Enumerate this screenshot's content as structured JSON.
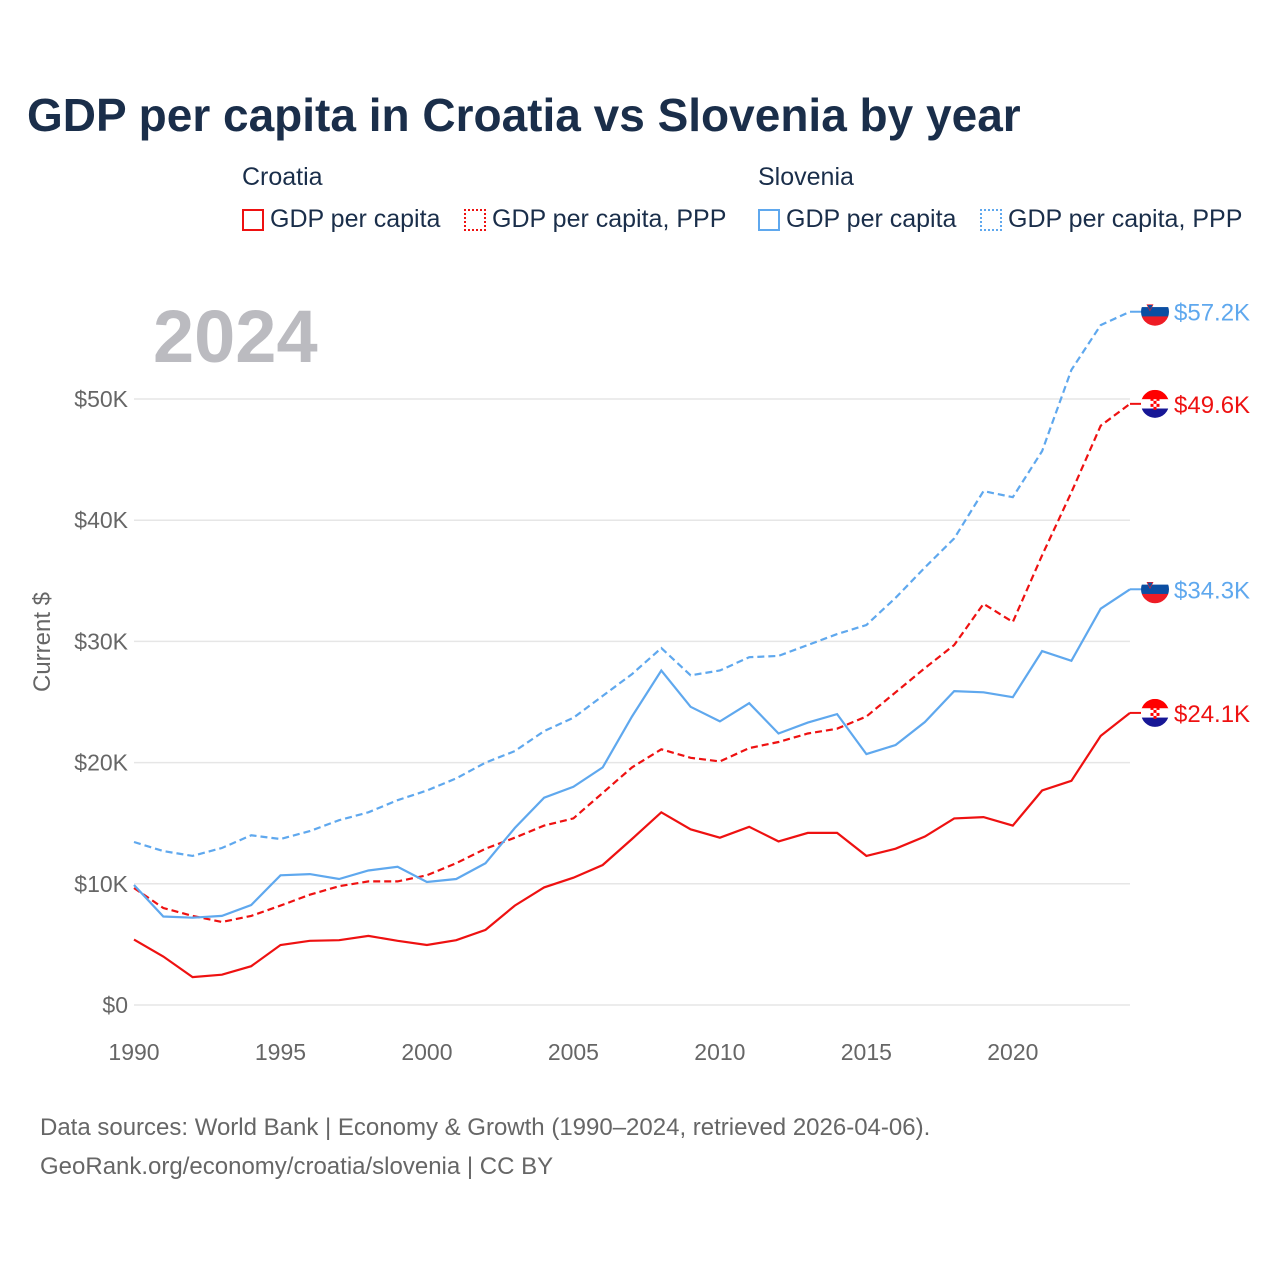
{
  "title": "GDP per capita in Croatia vs Slovenia by year",
  "legend": {
    "croatia": "Croatia",
    "slovenia": "Slovenia",
    "items": [
      "GDP per capita",
      "GDP per capita, PPP",
      "GDP per capita",
      "GDP per capita, PPP"
    ]
  },
  "year_label": "2024",
  "source_line1": "Data sources: World Bank | Economy & Growth (1990–2024, retrieved 2026-04-06).",
  "source_line2": "GeoRank.org/economy/croatia/slovenia | CC BY",
  "colors": {
    "croatia": "#ee1111",
    "slovenia": "#5fa8ee"
  },
  "chart_data": {
    "type": "line",
    "title": "GDP per capita in Croatia vs Slovenia by year",
    "xlabel": "",
    "ylabel": "Current $",
    "xlim": [
      1990,
      2024
    ],
    "ylim": [
      0,
      57.2
    ],
    "x_ticks": [
      1990,
      1995,
      2000,
      2005,
      2010,
      2015,
      2020
    ],
    "y_ticks": [
      {
        "v": 0,
        "label": "$0"
      },
      {
        "v": 10,
        "label": "$10K"
      },
      {
        "v": 20,
        "label": "$20K"
      },
      {
        "v": 30,
        "label": "$30K"
      },
      {
        "v": 40,
        "label": "$40K"
      },
      {
        "v": 50,
        "label": "$50K"
      }
    ],
    "x": [
      1990,
      1991,
      1992,
      1993,
      1994,
      1995,
      1996,
      1997,
      1998,
      1999,
      2000,
      2001,
      2002,
      2003,
      2004,
      2005,
      2006,
      2007,
      2008,
      2009,
      2010,
      2011,
      2012,
      2013,
      2014,
      2015,
      2016,
      2017,
      2018,
      2019,
      2020,
      2021,
      2022,
      2023,
      2024
    ],
    "series": [
      {
        "name": "Croatia GDP per capita",
        "country": "croatia",
        "dashed": false,
        "end_label": "$24.1K",
        "values": [
          5.4,
          4.0,
          2.3,
          2.5,
          3.2,
          4.95,
          5.3,
          5.35,
          5.7,
          5.3,
          4.95,
          5.35,
          6.2,
          8.2,
          9.7,
          10.5,
          11.55,
          13.7,
          15.9,
          14.5,
          13.8,
          14.7,
          13.5,
          14.2,
          14.2,
          12.3,
          12.9,
          13.9,
          15.4,
          15.5,
          14.8,
          17.7,
          18.5,
          22.2,
          24.1
        ]
      },
      {
        "name": "Croatia GDP per capita, PPP",
        "country": "croatia",
        "dashed": true,
        "end_label": "$49.6K",
        "values": [
          9.65,
          8.0,
          7.35,
          6.85,
          7.35,
          8.2,
          9.1,
          9.8,
          10.2,
          10.2,
          10.7,
          11.7,
          12.9,
          13.8,
          14.8,
          15.4,
          17.5,
          19.6,
          21.1,
          20.4,
          20.1,
          21.2,
          21.7,
          22.4,
          22.8,
          23.8,
          25.8,
          27.8,
          29.7,
          33.1,
          31.6,
          37.1,
          42.3,
          47.8,
          49.6
        ]
      },
      {
        "name": "Slovenia GDP per capita",
        "country": "slovenia",
        "dashed": false,
        "end_label": "$34.3K",
        "values": [
          9.9,
          7.3,
          7.2,
          7.35,
          8.25,
          10.7,
          10.8,
          10.4,
          11.1,
          11.4,
          10.15,
          10.4,
          11.7,
          14.6,
          17.1,
          18.0,
          19.6,
          23.8,
          27.6,
          24.6,
          23.4,
          24.9,
          22.4,
          23.3,
          24.0,
          20.7,
          21.45,
          23.35,
          25.9,
          25.8,
          25.4,
          29.2,
          28.4,
          32.7,
          34.3
        ]
      },
      {
        "name": "Slovenia GDP per capita, PPP",
        "country": "slovenia",
        "dashed": true,
        "end_label": "$57.2K",
        "values": [
          13.45,
          12.7,
          12.3,
          12.95,
          14.0,
          13.7,
          14.35,
          15.25,
          15.9,
          16.9,
          17.7,
          18.7,
          20.0,
          20.95,
          22.6,
          23.7,
          25.5,
          27.3,
          29.45,
          27.2,
          27.6,
          28.7,
          28.8,
          29.7,
          30.6,
          31.35,
          33.6,
          36.1,
          38.5,
          42.4,
          41.9,
          45.7,
          52.4,
          56.1,
          57.2
        ]
      }
    ]
  }
}
